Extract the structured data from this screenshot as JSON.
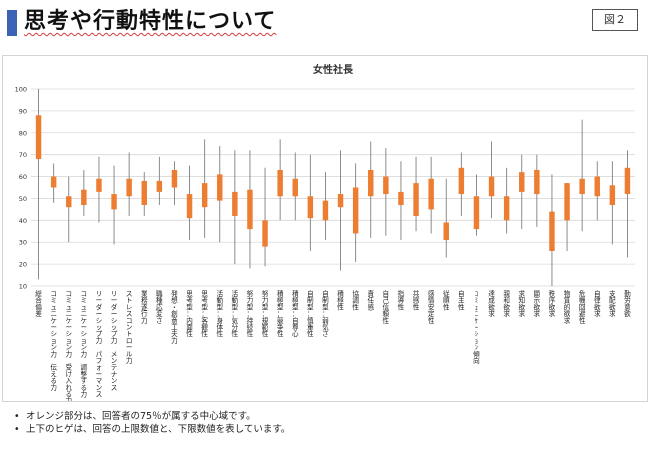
{
  "header": {
    "title": "思考や行動特性について",
    "figure_label": "図２"
  },
  "notes": [
    "オレンジ部分は、回答者の75％が属する中心域です。",
    "上下のヒゲは、回答の上限数値と、下限数値を表しています。"
  ],
  "colors": {
    "box": "#ed7d31",
    "whisker": "#7f7f7f",
    "grid": "#d9d9d9",
    "accent": "#3a63b5"
  },
  "chart_data": {
    "type": "boxplot",
    "title": "女性社長",
    "ylim": [
      10,
      100
    ],
    "yticks": [
      10,
      20,
      30,
      40,
      50,
      60,
      70,
      80,
      90,
      100
    ],
    "grid": true,
    "categories": [
      "総合偏差",
      "コミュニケーション力 伝える力",
      "コミュニケーション力 受け入れる力",
      "コミュニケーション力 調整する力",
      "リーダーシップ力 パフォーマンス",
      "リーダーシップ力 メンテナンス",
      "ストレスコントロール力",
      "業務遂行力",
      "職種応変さ",
      "発想・創意工夫力",
      "思考型：内面性",
      "思考型：客観性",
      "活動型：身体性",
      "活動型：気分性",
      "努力型：持続性",
      "努力型：規範性",
      "積極型：競争性",
      "積極型：自尊心",
      "自制型：慎重性",
      "自制型：弱気さ",
      "積極性",
      "協調性",
      "責任感",
      "自己信頼性",
      "指導性",
      "共感性",
      "感情安定性",
      "従順性",
      "自主性",
      "ｺﾐｭﾆｹｰｼｮﾝ傾向",
      "達成欲求",
      "親和欲求",
      "求知欲求",
      "顕示欲求",
      "秩序欲求",
      "物質的欲求",
      "危機回避性",
      "自律欲求",
      "支配欲求",
      "勤労意欲"
    ],
    "whisker_low": [
      13,
      48,
      30,
      42,
      39,
      29,
      42,
      42,
      47,
      47,
      31,
      32,
      30,
      20,
      18,
      19,
      40,
      40,
      26,
      31,
      17,
      21,
      32,
      33,
      31,
      35,
      34,
      23,
      42,
      33,
      41,
      34,
      36,
      37,
      10,
      26,
      35,
      40,
      29,
      23
    ],
    "q1": [
      68,
      55,
      46,
      47,
      53,
      45,
      51,
      47,
      53,
      55,
      41,
      46,
      49,
      42,
      36,
      28,
      51,
      51,
      41,
      40,
      46,
      34,
      51,
      52,
      47,
      42,
      45,
      31,
      52,
      36,
      51,
      40,
      53,
      52,
      26,
      40,
      52,
      51,
      47,
      52
    ],
    "q3": [
      88,
      60,
      51,
      54,
      59,
      52,
      59,
      58,
      58,
      63,
      52,
      57,
      61,
      53,
      54,
      40,
      63,
      59,
      51,
      49,
      52,
      55,
      63,
      60,
      53,
      57,
      59,
      39,
      64,
      51,
      60,
      51,
      62,
      63,
      44,
      57,
      59,
      60,
      56,
      64
    ],
    "whisker_high": [
      100,
      66,
      60,
      63,
      69,
      65,
      71,
      62,
      69,
      67,
      65,
      77,
      74,
      72,
      72,
      64,
      77,
      71,
      70,
      62,
      72,
      66,
      76,
      73,
      67,
      69,
      69,
      59,
      71,
      61,
      76,
      64,
      70,
      70,
      61,
      57,
      86,
      67,
      67,
      72
    ]
  }
}
